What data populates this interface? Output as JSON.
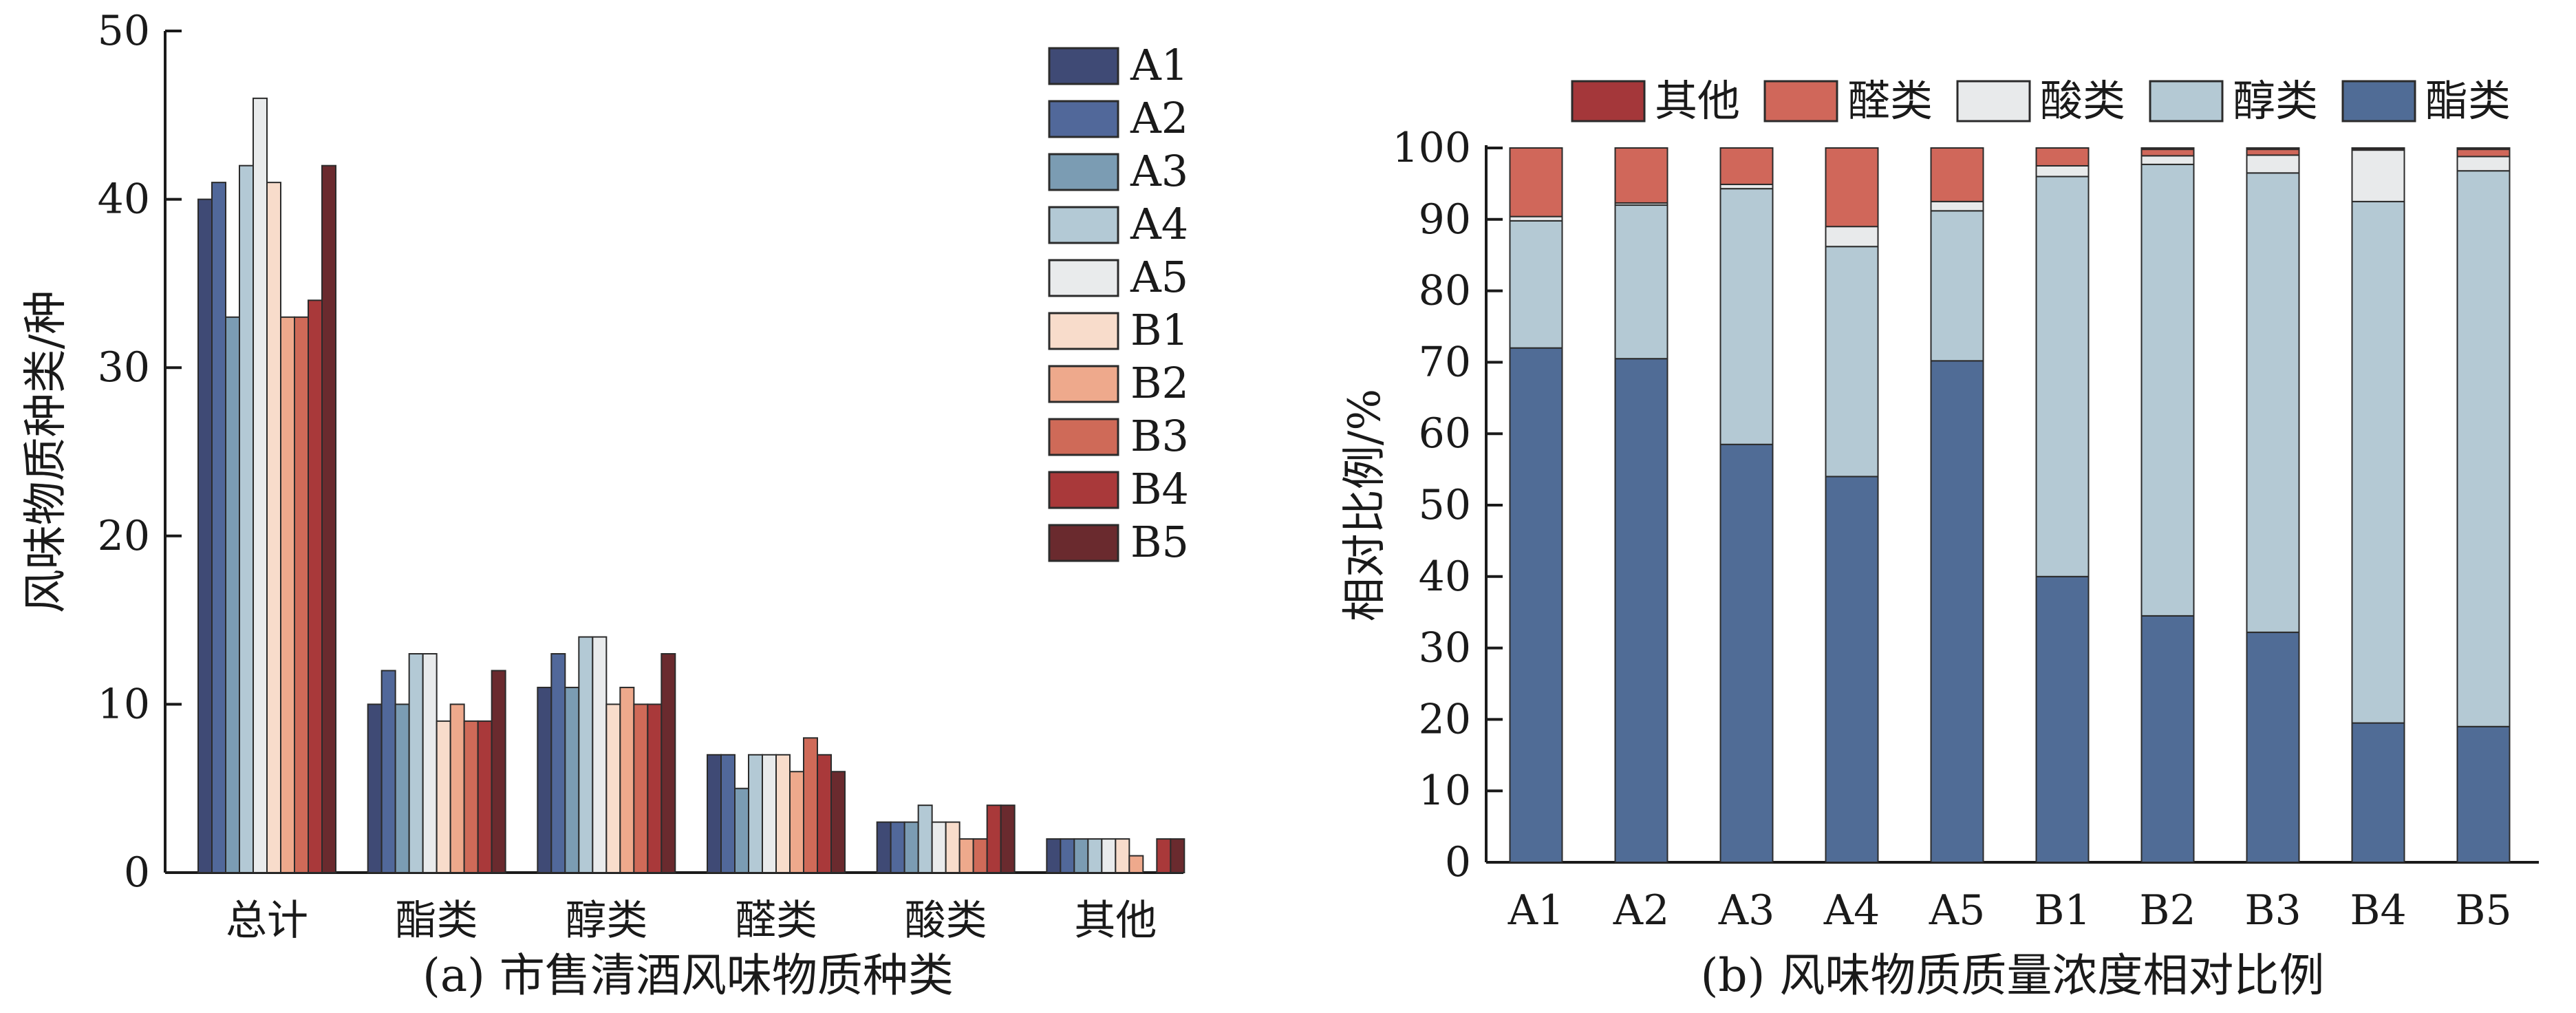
{
  "chart_data": [
    {
      "type": "bar",
      "caption": "(a) 市售清酒风味物质种类",
      "ylabel": "风味物质种类/种",
      "xlabel": "",
      "ylim": [
        0,
        50
      ],
      "yticks": [
        0,
        10,
        20,
        30,
        40,
        50
      ],
      "grid": false,
      "legend_position": "top-right",
      "categories": [
        "总计",
        "酯类",
        "醇类",
        "醛类",
        "酸类",
        "其他"
      ],
      "series": [
        {
          "name": "A1",
          "color": "#3f4a75",
          "values": [
            40,
            10,
            11,
            7,
            3,
            2
          ]
        },
        {
          "name": "A2",
          "color": "#51689a",
          "values": [
            41,
            12,
            13,
            7,
            3,
            2
          ]
        },
        {
          "name": "A3",
          "color": "#7b9cb3",
          "values": [
            33,
            10,
            11,
            5,
            3,
            2
          ]
        },
        {
          "name": "A4",
          "color": "#b3c9d5",
          "values": [
            42,
            13,
            14,
            7,
            4,
            2
          ]
        },
        {
          "name": "A5",
          "color": "#e9ebec",
          "values": [
            46,
            13,
            14,
            7,
            3,
            2
          ]
        },
        {
          "name": "B1",
          "color": "#f8dccb",
          "values": [
            41,
            9,
            10,
            7,
            3,
            2
          ]
        },
        {
          "name": "B2",
          "color": "#eea98c",
          "values": [
            33,
            10,
            11,
            6,
            2,
            1
          ]
        },
        {
          "name": "B3",
          "color": "#cf6a58",
          "values": [
            33,
            9,
            10,
            8,
            2,
            0
          ]
        },
        {
          "name": "B4",
          "color": "#a9393a",
          "values": [
            34,
            9,
            10,
            7,
            4,
            2
          ]
        },
        {
          "name": "B5",
          "color": "#6a2a2e",
          "values": [
            42,
            12,
            13,
            6,
            4,
            2
          ]
        }
      ]
    },
    {
      "type": "stacked-bar",
      "caption": "(b) 风味物质质量浓度相对比例",
      "ylabel": "相对比例/%",
      "xlabel": "",
      "ylim": [
        0,
        100
      ],
      "yticks": [
        0,
        10,
        20,
        30,
        40,
        50,
        60,
        70,
        80,
        90,
        100
      ],
      "grid": false,
      "legend_position": "top",
      "categories": [
        "A1",
        "A2",
        "A3",
        "A4",
        "A5",
        "B1",
        "B2",
        "B3",
        "B4",
        "B5"
      ],
      "legend_order": [
        "其他",
        "醛类",
        "酸类",
        "醇类",
        "酯类"
      ],
      "series": [
        {
          "name": "酯类",
          "color": "#506c96",
          "values": [
            72,
            70.5,
            58.5,
            54,
            70.2,
            40,
            34.5,
            32.2,
            19.5,
            19
          ]
        },
        {
          "name": "醇类",
          "color": "#b4c9d4",
          "values": [
            17.8,
            21.5,
            35.8,
            32.2,
            21,
            56,
            63.2,
            64.3,
            73,
            77.8
          ]
        },
        {
          "name": "酸类",
          "color": "#e8eaeb",
          "values": [
            0.6,
            0.3,
            0.6,
            2.8,
            1.3,
            1.5,
            1.2,
            2.5,
            7.2,
            2
          ]
        },
        {
          "name": "醛类",
          "color": "#d0675a",
          "values": [
            9.6,
            7.7,
            5.1,
            11,
            7.5,
            2.5,
            0.9,
            0.8,
            0.2,
            1
          ]
        },
        {
          "name": "其他",
          "color": "#a4373a",
          "values": [
            0,
            0,
            0,
            0,
            0,
            0,
            0.2,
            0.2,
            0.1,
            0.2
          ]
        }
      ]
    }
  ]
}
